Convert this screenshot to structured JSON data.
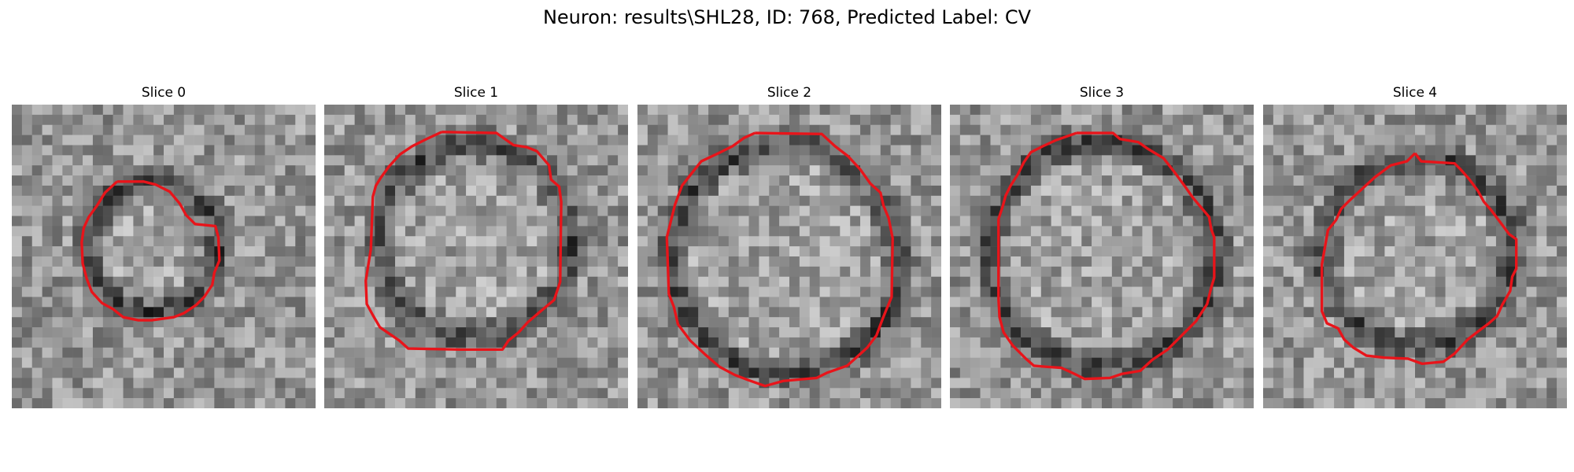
{
  "figure": {
    "title": "Neuron: results\\SHL28, ID: 768, Predicted Label: CV"
  },
  "panels": [
    {
      "title": "Slice 0"
    },
    {
      "title": "Slice 1"
    },
    {
      "title": "Slice 2"
    },
    {
      "title": "Slice 3"
    },
    {
      "title": "Slice 4"
    }
  ],
  "colors": {
    "contour": "#e8141a",
    "background": "#ffffff"
  }
}
